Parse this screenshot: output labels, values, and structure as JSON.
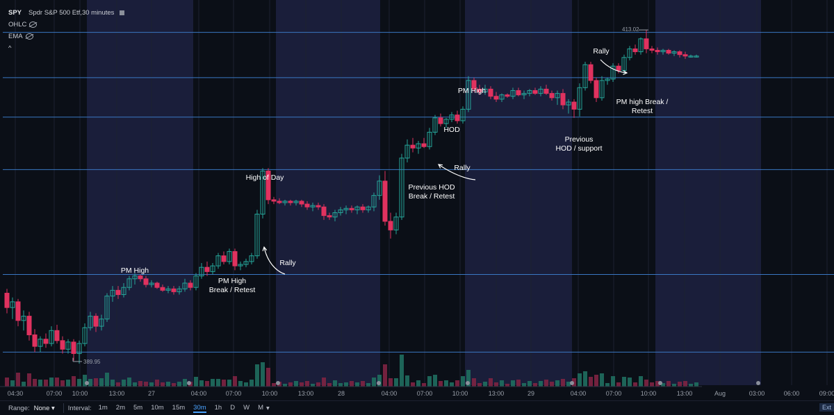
{
  "header": {
    "symbol": "SPY",
    "description": "Spdr S&P 500 Etf,30 minutes",
    "indicators": [
      "OHLC",
      "EMA"
    ],
    "collapse": "^"
  },
  "toolbar": {
    "range_label": "Range:",
    "range_value": "None",
    "range_arrow": "▾",
    "interval_label": "Interval:",
    "intervals": [
      "1m",
      "2m",
      "5m",
      "10m",
      "15m",
      "30m",
      "1h",
      "D",
      "W",
      "M"
    ],
    "active_interval": "30m",
    "ext_label": "Ext"
  },
  "chart_data": {
    "type": "candlestick",
    "x_ticks": [
      "04:30",
      "07:00",
      "10:00",
      "13:00",
      "27",
      "04:00",
      "07:00",
      "10:00",
      "13:00",
      "28",
      "04:00",
      "07:00",
      "10:00",
      "13:00",
      "29",
      "04:00",
      "07:00",
      "10:00",
      "13:00",
      "Aug",
      "03:00",
      "06:00",
      "09:00"
    ],
    "y_range": [
      388.4,
      415.2
    ],
    "price_labels": [
      {
        "text": "413.02",
        "price": 413.02
      },
      {
        "text": "389.95",
        "price": 389.95
      }
    ],
    "horizontal_levels": [
      412.95,
      409.8,
      407.05,
      403.4,
      396.1,
      390.7
    ],
    "annotations": [
      "PM High",
      "PM High\nBreak / Retest",
      "High of Day",
      "Rally",
      "Previous HOD\nBreak / Retest",
      "HOD",
      "Rally",
      "PM High",
      "Previous\nHOD / support",
      "Rally",
      "PM high Break /\nRetest"
    ],
    "colors": {
      "up": "#26a69a",
      "down": "#e0325f",
      "level": "#3a78c4",
      "session": "#1a1e3a",
      "annotation": "#ffffff"
    }
  }
}
